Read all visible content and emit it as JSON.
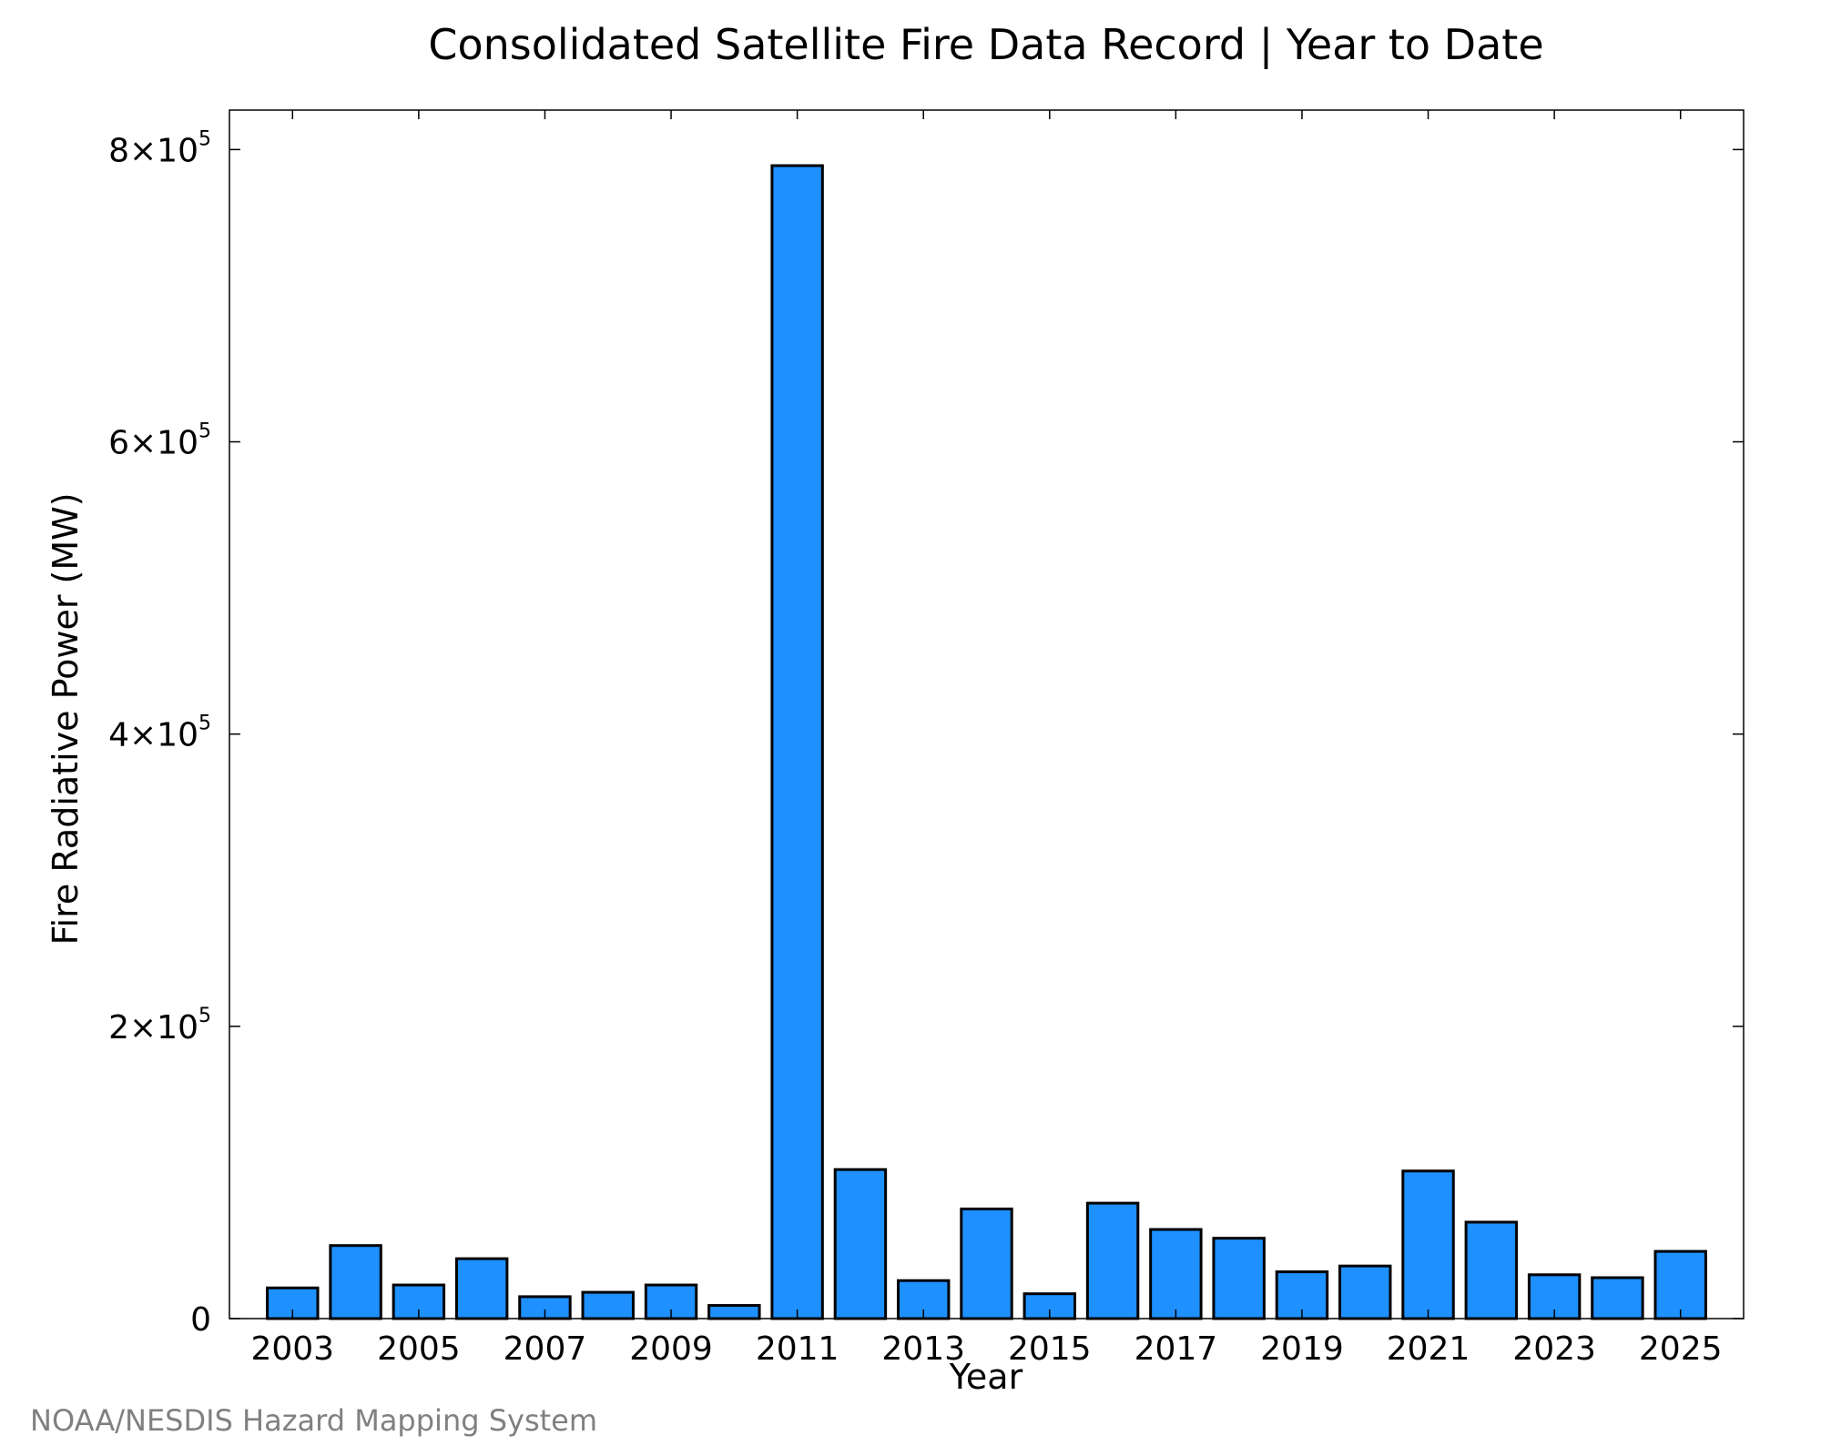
{
  "chart_data": {
    "type": "bar",
    "title": "Consolidated Satellite Fire Data Record | Year to Date",
    "xlabel": "Year",
    "ylabel": "Fire Radiative Power (MW)",
    "credit": "NOAA/NESDIS Hazard Mapping System",
    "bar_color": "#1e90ff",
    "x": [
      2003,
      2004,
      2005,
      2006,
      2007,
      2008,
      2009,
      2010,
      2011,
      2012,
      2013,
      2014,
      2015,
      2016,
      2017,
      2018,
      2019,
      2020,
      2021,
      2022,
      2023,
      2024,
      2025
    ],
    "values": [
      21000,
      50000,
      23000,
      41000,
      15000,
      18000,
      23000,
      9000,
      789000,
      102000,
      26000,
      75000,
      17000,
      79000,
      61000,
      55000,
      32000,
      36000,
      101000,
      66000,
      30000,
      28000,
      46000
    ],
    "xticks": [
      {
        "value": 2003,
        "label": "2003"
      },
      {
        "value": 2005,
        "label": "2005"
      },
      {
        "value": 2007,
        "label": "2007"
      },
      {
        "value": 2009,
        "label": "2009"
      },
      {
        "value": 2011,
        "label": "2011"
      },
      {
        "value": 2013,
        "label": "2013"
      },
      {
        "value": 2015,
        "label": "2015"
      },
      {
        "value": 2017,
        "label": "2017"
      },
      {
        "value": 2019,
        "label": "2019"
      },
      {
        "value": 2021,
        "label": "2021"
      },
      {
        "value": 2023,
        "label": "2023"
      },
      {
        "value": 2025,
        "label": "2025"
      }
    ],
    "yticks": [
      {
        "value": 0,
        "mant": "0",
        "exp": ""
      },
      {
        "value": 200000,
        "mant": "2×10",
        "exp": "5"
      },
      {
        "value": 400000,
        "mant": "4×10",
        "exp": "5"
      },
      {
        "value": 600000,
        "mant": "6×10",
        "exp": "5"
      },
      {
        "value": 800000,
        "mant": "8×10",
        "exp": "5"
      }
    ],
    "xlim": [
      2002,
      2026
    ],
    "ylim": [
      0,
      827000
    ],
    "grid": false,
    "legend": "none"
  }
}
